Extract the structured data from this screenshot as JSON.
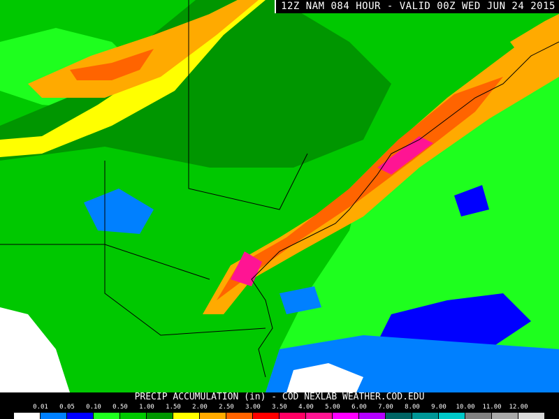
{
  "title": "12Z NAM 084 HOUR - VALID 00Z WED JUN 24 2015",
  "legend": {
    "title": "PRECIP ACCUMULATION (in) - COD NEXLAB   WEATHER.COD.EDU",
    "labels": [
      "0.01",
      "0.05",
      "0.10",
      "0.50",
      "1.00",
      "1.50",
      "2.00",
      "2.50",
      "3.00",
      "3.50",
      "4.00",
      "5.00",
      "6.00",
      "7.00",
      "8.00",
      "9.00",
      "10.00",
      "11.00",
      "12.00"
    ],
    "colors": [
      "#ffffff",
      "#0080ff",
      "#0000ff",
      "#1eff1e",
      "#00c800",
      "#009600",
      "#ffff00",
      "#ffaa00",
      "#ff6400",
      "#ff0000",
      "#ff0064",
      "#ff1493",
      "#ff00ff",
      "#b400ff",
      "#006464",
      "#009696",
      "#00c8c8",
      "#808080",
      "#a8a8a8",
      "#d8d8d8"
    ]
  },
  "map_colors": {
    "land": "#00c800",
    "ocean": "#1eff1e",
    "border": "#000000",
    "county": "#a0a0a0"
  }
}
